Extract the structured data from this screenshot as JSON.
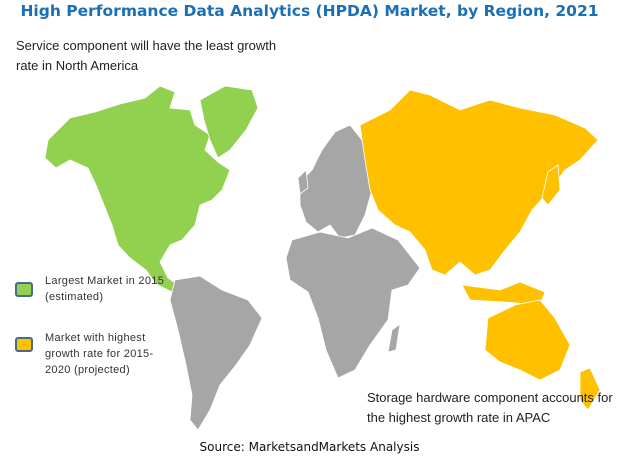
{
  "title": "High Performance Data Analytics (HPDA) Market, by Region, 2021",
  "annotations": {
    "north_america": "Service component will have the least growth rate in North America",
    "apac": "Storage hardware component accounts for the highest growth rate in APAC"
  },
  "legend": [
    {
      "label": "Largest Market in 2015 (estimated)",
      "color": "#92d050"
    },
    {
      "label": "Market with highest growth rate for 2015-2020 (projected)",
      "color": "#ffc000"
    }
  ],
  "regions": [
    {
      "name": "North America",
      "category": "Largest Market in 2015 (estimated)",
      "color": "#92d050"
    },
    {
      "name": "APAC",
      "category": "Market with highest growth rate for 2015-2020 (projected)",
      "color": "#ffc000"
    },
    {
      "name": "Europe",
      "category": "other",
      "color": "#a6a6a6"
    },
    {
      "name": "Latin America",
      "category": "other",
      "color": "#a6a6a6"
    },
    {
      "name": "Middle East & Africa",
      "category": "other",
      "color": "#a6a6a6"
    }
  ],
  "source": "Source: MarketsandMarkets Analysis"
}
